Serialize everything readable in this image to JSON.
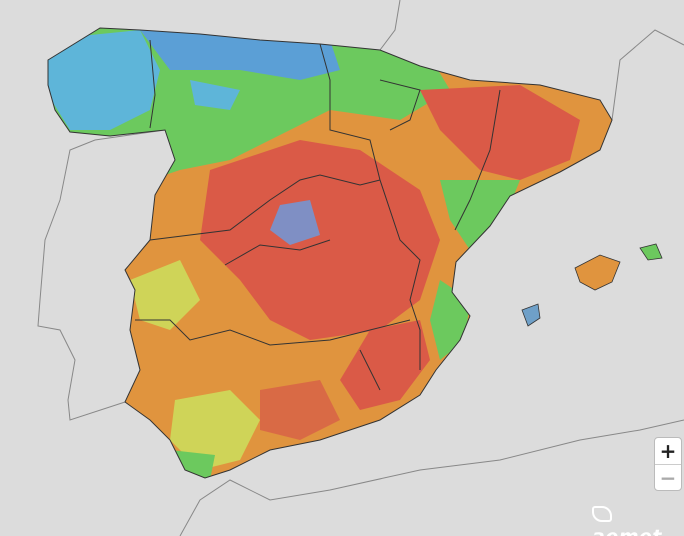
{
  "zoom_controls": {
    "zoom_in": "+",
    "zoom_out": "−"
  },
  "logo": {
    "text": "aemet"
  }
}
